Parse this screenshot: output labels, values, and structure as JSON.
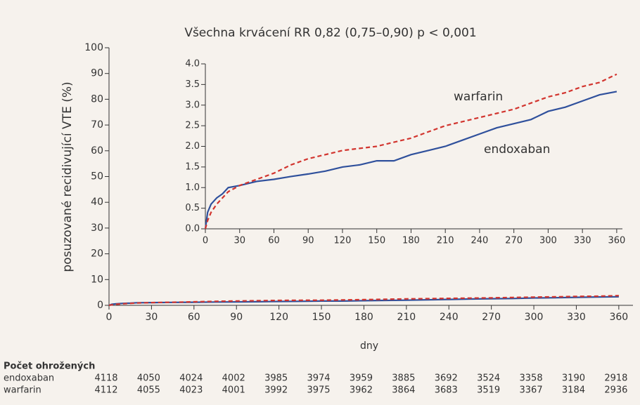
{
  "chart_data": [
    {
      "type": "line",
      "title": "Všechna krvácení RR 0,82 (0,75–0,90)  p < 0,001",
      "x_label": "dny",
      "y_label": "posuzované recidivující VTE (%)",
      "xlim": [
        0,
        370
      ],
      "xticks": [
        0,
        30,
        60,
        90,
        120,
        150,
        180,
        210,
        240,
        270,
        300,
        330,
        360
      ],
      "ylim": [
        0,
        100
      ],
      "yticks": [
        0,
        10,
        20,
        30,
        40,
        50,
        60,
        70,
        80,
        90,
        100
      ],
      "x": [
        0,
        2,
        5,
        10,
        15,
        20,
        30,
        45,
        60,
        75,
        90,
        105,
        120,
        135,
        150,
        165,
        180,
        195,
        210,
        225,
        240,
        255,
        270,
        285,
        300,
        315,
        330,
        345,
        360
      ],
      "series": [
        {
          "name": "endoxaban",
          "color": "#2f509c",
          "dashed": false,
          "values": [
            0,
            0.4,
            0.6,
            0.75,
            0.85,
            1.0,
            1.05,
            1.15,
            1.2,
            1.27,
            1.33,
            1.4,
            1.5,
            1.55,
            1.65,
            1.65,
            1.8,
            1.9,
            2.0,
            2.15,
            2.3,
            2.45,
            2.55,
            2.65,
            2.85,
            2.95,
            3.1,
            3.25,
            3.33
          ]
        },
        {
          "name": "warfarin",
          "color": "#d2352f",
          "dashed": true,
          "values": [
            0,
            0.2,
            0.4,
            0.6,
            0.75,
            0.9,
            1.05,
            1.2,
            1.35,
            1.55,
            1.7,
            1.8,
            1.9,
            1.95,
            2.0,
            2.1,
            2.2,
            2.35,
            2.5,
            2.6,
            2.7,
            2.8,
            2.9,
            3.05,
            3.2,
            3.3,
            3.45,
            3.55,
            3.75
          ]
        }
      ]
    },
    {
      "type": "line",
      "xlim": [
        0,
        365
      ],
      "xticks": [
        0,
        30,
        60,
        90,
        120,
        150,
        180,
        210,
        240,
        270,
        300,
        330,
        360
      ],
      "ylim": [
        0,
        4
      ],
      "yticks": [
        {
          "value": 0,
          "label": "0.0"
        },
        {
          "value": 0.5,
          "label": "0.5"
        },
        {
          "value": 1,
          "label": "1.0"
        },
        {
          "value": 1.5,
          "label": "1.5"
        },
        {
          "value": 2,
          "label": "2.0"
        },
        {
          "value": 2.5,
          "label": "2.5"
        },
        {
          "value": 3,
          "label": "3.0"
        },
        {
          "value": 3.5,
          "label": "3.5"
        },
        {
          "value": 4,
          "label": "4.0"
        }
      ],
      "x": [
        0,
        2,
        5,
        10,
        15,
        20,
        30,
        45,
        60,
        75,
        90,
        105,
        120,
        135,
        150,
        165,
        180,
        195,
        210,
        225,
        240,
        255,
        270,
        285,
        300,
        315,
        330,
        345,
        360
      ],
      "series": [
        {
          "name": "endoxaban",
          "color": "#2f509c",
          "dashed": false,
          "values": [
            0,
            0.4,
            0.6,
            0.75,
            0.85,
            1.0,
            1.05,
            1.15,
            1.2,
            1.27,
            1.33,
            1.4,
            1.5,
            1.55,
            1.65,
            1.65,
            1.8,
            1.9,
            2.0,
            2.15,
            2.3,
            2.45,
            2.55,
            2.65,
            2.85,
            2.95,
            3.1,
            3.25,
            3.33
          ]
        },
        {
          "name": "warfarin",
          "color": "#d2352f",
          "dashed": true,
          "values": [
            0,
            0.2,
            0.4,
            0.6,
            0.75,
            0.9,
            1.05,
            1.2,
            1.35,
            1.55,
            1.7,
            1.8,
            1.9,
            1.95,
            2.0,
            2.1,
            2.2,
            2.35,
            2.5,
            2.6,
            2.7,
            2.8,
            2.9,
            3.05,
            3.2,
            3.3,
            3.45,
            3.55,
            3.75
          ]
        }
      ]
    }
  ],
  "risk_table": {
    "title": "Počet ohrožených",
    "rows": [
      [
        4118,
        4050,
        4024,
        4002,
        3985,
        3974,
        3959,
        3885,
        3692,
        3524,
        3358,
        3190,
        2918
      ],
      [
        4112,
        4055,
        4023,
        4001,
        3992,
        3975,
        3962,
        3864,
        3683,
        3519,
        3367,
        3184,
        2936
      ]
    ]
  }
}
